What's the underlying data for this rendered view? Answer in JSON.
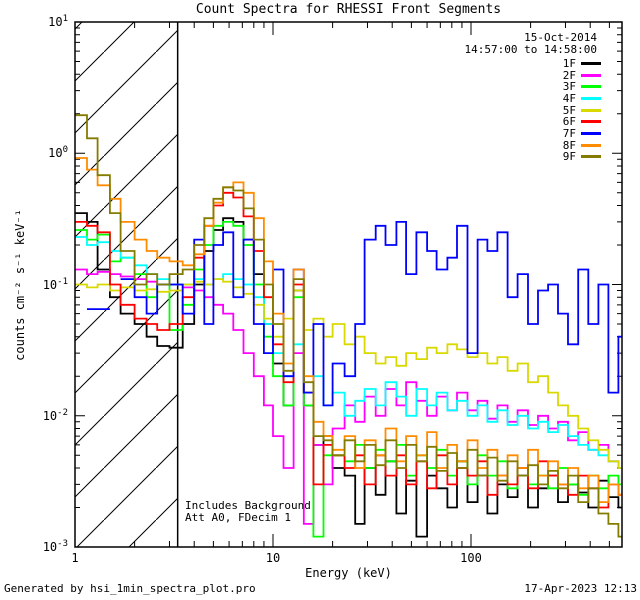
{
  "header": {
    "title": "Count Spectra for RHESSI Front Segments"
  },
  "info": {
    "date": "15-Oct-2014",
    "time_range": "14:57:00 to 14:58:00"
  },
  "annotations": {
    "line1": "Includes Background",
    "line2": "Att A0, FDecim 1"
  },
  "footer": {
    "left": "Generated by hsi_1min_spectra_plot.pro",
    "right": "17-Apr-2023 12:13"
  },
  "chart_data": {
    "type": "line",
    "style": "histogram-step",
    "title": "Count Spectra for RHESSI Front Segments",
    "xlabel": "Energy (keV)",
    "ylabel": "counts cm⁻² s⁻¹ keV⁻¹",
    "xscale": "log",
    "yscale": "log",
    "xlim": [
      1,
      580
    ],
    "ylim": [
      0.001,
      10
    ],
    "grid": false,
    "legend_position": "upper-right",
    "x_ticks": {
      "values": [
        1,
        10,
        100
      ]
    },
    "y_ticks": {
      "base": 10,
      "exponents": [
        1,
        0,
        -1,
        -2,
        -3
      ]
    },
    "hatched_region": {
      "x_min": 1,
      "x_max": 3.3
    },
    "energies_keV": [
      1.0,
      1.15,
      1.3,
      1.5,
      1.7,
      2.0,
      2.3,
      2.6,
      3.0,
      3.5,
      4.0,
      4.5,
      5.0,
      5.6,
      6.3,
      7.1,
      8.0,
      9.0,
      10,
      11.3,
      12.7,
      14.3,
      16,
      18,
      20,
      23,
      26,
      29,
      33,
      37,
      42,
      47,
      53,
      60,
      67,
      76,
      85,
      96,
      108,
      121,
      136,
      153,
      172,
      194,
      218,
      245,
      275,
      309,
      348,
      391,
      440,
      494,
      555
    ],
    "series": [
      {
        "name": "1F",
        "color": "#000000",
        "values": [
          0.35,
          0.3,
          0.13,
          0.08,
          0.06,
          0.05,
          0.04,
          0.034,
          0.033,
          0.05,
          0.1,
          0.18,
          0.26,
          0.32,
          0.3,
          0.22,
          0.12,
          0.05,
          0.025,
          0.012,
          0.09,
          0.012,
          0.006,
          0.007,
          0.004,
          0.0035,
          0.0015,
          0.004,
          0.0025,
          0.0045,
          0.0018,
          0.0032,
          0.0012,
          0.0035,
          0.0028,
          0.002,
          0.0045,
          0.0022,
          0.0035,
          0.0018,
          0.003,
          0.0024,
          0.0035,
          0.002,
          0.0028,
          0.0035,
          0.0022,
          0.003,
          0.0026,
          0.002,
          0.0032,
          0.0024,
          0.002
        ]
      },
      {
        "name": "2F",
        "color": "#FF00FF",
        "values": [
          0.13,
          0.12,
          0.125,
          0.12,
          0.115,
          0.11,
          0.105,
          0.1,
          0.1,
          0.095,
          0.09,
          0.08,
          0.07,
          0.06,
          0.045,
          0.03,
          0.02,
          0.012,
          0.007,
          0.004,
          0.03,
          0.0015,
          0.006,
          0.003,
          0.008,
          0.012,
          0.009,
          0.014,
          0.01,
          0.016,
          0.012,
          0.018,
          0.013,
          0.01,
          0.014,
          0.011,
          0.015,
          0.011,
          0.013,
          0.0095,
          0.012,
          0.009,
          0.011,
          0.0085,
          0.01,
          0.008,
          0.009,
          0.0065,
          0.0075,
          0.0055,
          0.006,
          0.0045,
          0.004
        ]
      },
      {
        "name": "3F",
        "color": "#00FF00",
        "values": [
          0.26,
          0.22,
          0.24,
          0.15,
          0.16,
          0.12,
          0.08,
          0.1,
          0.045,
          0.07,
          0.13,
          0.2,
          0.28,
          0.3,
          0.28,
          0.2,
          0.1,
          0.04,
          0.02,
          0.012,
          0.08,
          0.012,
          0.0012,
          0.005,
          0.005,
          0.0045,
          0.006,
          0.004,
          0.0055,
          0.0045,
          0.006,
          0.0035,
          0.005,
          0.004,
          0.0055,
          0.0035,
          0.0045,
          0.003,
          0.005,
          0.0035,
          0.0045,
          0.0028,
          0.004,
          0.003,
          0.0035,
          0.0028,
          0.004,
          0.003,
          0.0025,
          0.0035,
          0.0028,
          0.0035,
          0.003
        ]
      },
      {
        "name": "4F",
        "color": "#00FFFF",
        "values": [
          0.23,
          0.2,
          0.21,
          0.18,
          0.16,
          0.14,
          0.12,
          0.11,
          0.1,
          0.1,
          0.11,
          0.1,
          0.11,
          0.12,
          0.11,
          0.1,
          0.08,
          0.05,
          0.03,
          0.02,
          0.035,
          0.015,
          0.02,
          0.012,
          0.015,
          0.01,
          0.013,
          0.016,
          0.012,
          0.018,
          0.014,
          0.01,
          0.016,
          0.012,
          0.015,
          0.011,
          0.013,
          0.01,
          0.012,
          0.009,
          0.011,
          0.0085,
          0.01,
          0.008,
          0.009,
          0.0075,
          0.0085,
          0.007,
          0.006,
          0.0055,
          0.005,
          0.0045,
          0.004
        ]
      },
      {
        "name": "5F",
        "color": "#D9D900",
        "values": [
          0.1,
          0.095,
          0.1,
          0.09,
          0.095,
          0.09,
          0.092,
          0.088,
          0.09,
          0.1,
          0.105,
          0.1,
          0.11,
          0.105,
          0.095,
          0.085,
          0.07,
          0.055,
          0.04,
          0.055,
          0.09,
          0.045,
          0.055,
          0.04,
          0.05,
          0.035,
          0.04,
          0.03,
          0.025,
          0.028,
          0.024,
          0.03,
          0.027,
          0.033,
          0.03,
          0.035,
          0.032,
          0.028,
          0.03,
          0.025,
          0.028,
          0.022,
          0.025,
          0.018,
          0.02,
          0.015,
          0.012,
          0.01,
          0.008,
          0.0065,
          0.0055,
          0.0045,
          0.004
        ]
      },
      {
        "name": "6F",
        "color": "#FF0000",
        "values": [
          0.3,
          0.28,
          0.25,
          0.1,
          0.07,
          0.055,
          0.05,
          0.045,
          0.05,
          0.08,
          0.16,
          0.28,
          0.4,
          0.5,
          0.46,
          0.33,
          0.18,
          0.08,
          0.035,
          0.018,
          0.1,
          0.015,
          0.003,
          0.006,
          0.005,
          0.004,
          0.005,
          0.003,
          0.005,
          0.0035,
          0.005,
          0.003,
          0.0045,
          0.0028,
          0.005,
          0.003,
          0.004,
          0.0035,
          0.0045,
          0.0025,
          0.0035,
          0.003,
          0.004,
          0.0028,
          0.0045,
          0.0035,
          0.003,
          0.0025,
          0.0035,
          0.0028,
          0.002,
          0.003,
          0.0025
        ]
      },
      {
        "name": "7F",
        "color": "#0000FF",
        "values": [
          null,
          0.065,
          0.065,
          null,
          0.11,
          0.08,
          0.06,
          0.1,
          0.1,
          0.06,
          0.22,
          0.05,
          0.2,
          0.25,
          0.08,
          0.22,
          0.05,
          0.03,
          0.13,
          0.02,
          0.13,
          0.015,
          0.05,
          0.012,
          0.025,
          0.02,
          0.05,
          0.22,
          0.28,
          0.2,
          0.3,
          0.12,
          0.25,
          0.18,
          0.13,
          0.16,
          0.28,
          0.03,
          0.22,
          0.18,
          0.25,
          0.08,
          0.12,
          0.05,
          0.09,
          0.1,
          0.06,
          0.035,
          0.13,
          0.05,
          0.1,
          0.015,
          0.04
        ]
      },
      {
        "name": "8F",
        "color": "#FF8C00",
        "values": [
          0.92,
          0.75,
          0.57,
          0.45,
          0.3,
          0.22,
          0.18,
          0.16,
          0.15,
          0.14,
          0.17,
          0.28,
          0.42,
          0.55,
          0.6,
          0.5,
          0.32,
          0.15,
          0.06,
          0.025,
          0.13,
          0.02,
          0.009,
          0.007,
          0.0055,
          0.007,
          0.004,
          0.0065,
          0.005,
          0.008,
          0.0045,
          0.007,
          0.005,
          0.0075,
          0.004,
          0.006,
          0.0045,
          0.0065,
          0.004,
          0.0055,
          0.0035,
          0.005,
          0.004,
          0.0055,
          0.0035,
          0.0045,
          0.003,
          0.004,
          0.0028,
          0.0035,
          0.0022,
          0.003,
          0.0025
        ]
      },
      {
        "name": "9F",
        "color": "#847C00",
        "values": [
          1.95,
          1.3,
          0.68,
          0.35,
          0.18,
          0.1,
          0.12,
          0.1,
          0.12,
          0.13,
          0.2,
          0.32,
          0.45,
          0.55,
          0.52,
          0.38,
          0.22,
          0.1,
          0.05,
          0.022,
          0.11,
          0.018,
          0.007,
          0.0065,
          0.005,
          0.0065,
          0.0045,
          0.006,
          0.0042,
          0.0065,
          0.004,
          0.006,
          0.0045,
          0.0058,
          0.0038,
          0.0052,
          0.004,
          0.0055,
          0.0035,
          0.0048,
          0.0032,
          0.0045,
          0.0035,
          0.0042,
          0.003,
          0.0038,
          0.0028,
          0.0035,
          0.0022,
          0.0028,
          0.0018,
          0.0015,
          0.0012
        ]
      }
    ]
  }
}
